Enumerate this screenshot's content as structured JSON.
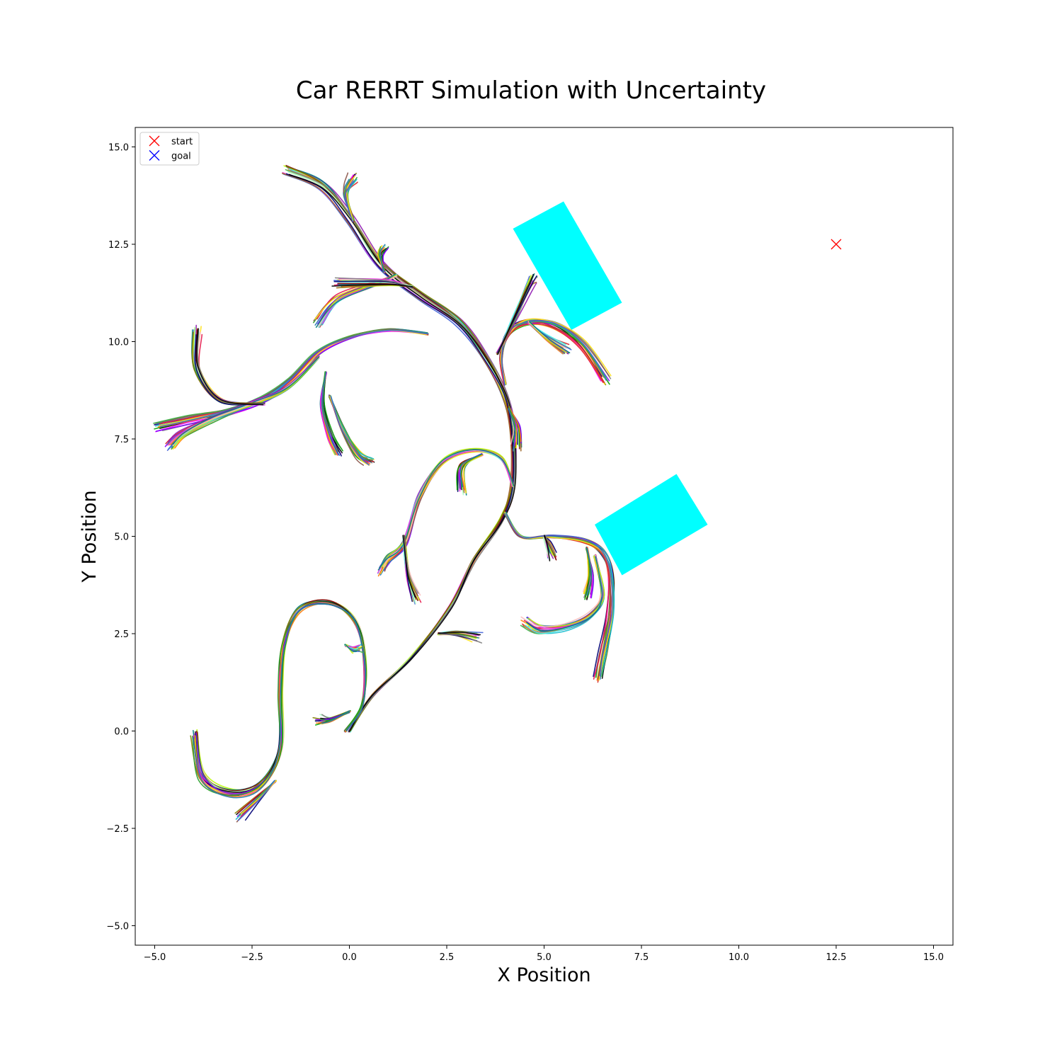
{
  "chart_data": {
    "type": "line",
    "title": "Car RERRT Simulation with Uncertainty",
    "xlabel": "X Position",
    "ylabel": "Y Position",
    "xlim": [
      -5.5,
      15.5
    ],
    "ylim": [
      -5.5,
      15.5
    ],
    "xticks": [
      -5.0,
      -2.5,
      0.0,
      2.5,
      5.0,
      7.5,
      10.0,
      12.5,
      15.0
    ],
    "yticks": [
      -5.0,
      -2.5,
      0.0,
      2.5,
      5.0,
      7.5,
      10.0,
      12.5,
      15.0
    ],
    "xtick_labels": [
      "−5.0",
      "−2.5",
      "0.0",
      "2.5",
      "5.0",
      "7.5",
      "10.0",
      "12.5",
      "15.0"
    ],
    "ytick_labels": [
      "−5.0",
      "−2.5",
      "0.0",
      "2.5",
      "5.0",
      "7.5",
      "10.0",
      "12.5",
      "15.0"
    ],
    "grid": false,
    "legend": {
      "placement": "upper-left",
      "entries": [
        {
          "label": "start",
          "marker": "x",
          "color": "#ff0000"
        },
        {
          "label": "goal",
          "marker": "x",
          "color": "#0000ff"
        }
      ]
    },
    "start": {
      "x": 12.5,
      "y": 12.5
    },
    "obstacles": [
      {
        "color": "#00ffff",
        "corners": [
          [
            4.2,
            12.9
          ],
          [
            5.5,
            13.6
          ],
          [
            7.0,
            11.0
          ],
          [
            5.7,
            10.3
          ]
        ]
      },
      {
        "color": "#00ffff",
        "corners": [
          [
            6.3,
            5.3
          ],
          [
            8.4,
            6.6
          ],
          [
            9.2,
            5.3
          ],
          [
            7.0,
            4.0
          ]
        ]
      }
    ],
    "path_bundles": [
      {
        "points": [
          [
            0.0,
            0.0
          ],
          [
            0.6,
            0.9
          ],
          [
            1.6,
            1.9
          ],
          [
            2.6,
            3.2
          ],
          [
            3.2,
            4.4
          ],
          [
            3.9,
            5.4
          ],
          [
            4.2,
            6.3
          ],
          [
            4.2,
            7.6
          ],
          [
            4.0,
            8.6
          ],
          [
            3.5,
            9.6
          ],
          [
            2.8,
            10.5
          ],
          [
            1.8,
            11.2
          ],
          [
            0.8,
            12.0
          ],
          [
            0.0,
            13.2
          ],
          [
            -0.7,
            14.0
          ],
          [
            -1.6,
            14.4
          ]
        ]
      },
      {
        "points": [
          [
            -0.1,
            0.0
          ],
          [
            0.3,
            0.6
          ],
          [
            0.4,
            1.4
          ],
          [
            0.3,
            2.4
          ],
          [
            0.0,
            3.0
          ],
          [
            -0.6,
            3.3
          ],
          [
            -1.3,
            3.1
          ],
          [
            -1.7,
            2.2
          ],
          [
            -1.8,
            1.0
          ],
          [
            -1.8,
            -0.5
          ],
          [
            -2.3,
            -1.4
          ],
          [
            -3.1,
            -1.6
          ],
          [
            -3.8,
            -1.2
          ],
          [
            -4.0,
            -0.1
          ]
        ]
      },
      {
        "points": [
          [
            -1.9,
            -1.3
          ],
          [
            -2.3,
            -1.7
          ],
          [
            -2.8,
            -2.2
          ]
        ]
      },
      {
        "points": [
          [
            4.2,
            6.3
          ],
          [
            3.9,
            7.0
          ],
          [
            3.2,
            7.2
          ],
          [
            2.4,
            6.9
          ],
          [
            1.8,
            6.0
          ],
          [
            1.4,
            4.8
          ],
          [
            1.0,
            4.4
          ],
          [
            0.8,
            4.1
          ]
        ]
      },
      {
        "points": [
          [
            1.4,
            5.0
          ],
          [
            1.5,
            4.0
          ],
          [
            1.7,
            3.4
          ]
        ]
      },
      {
        "points": [
          [
            3.4,
            7.1
          ],
          [
            2.9,
            6.8
          ],
          [
            2.9,
            6.2
          ]
        ]
      },
      {
        "points": [
          [
            4.0,
            5.6
          ],
          [
            4.4,
            5.0
          ],
          [
            5.2,
            5.0
          ],
          [
            6.0,
            4.9
          ],
          [
            6.5,
            4.6
          ],
          [
            6.7,
            4.0
          ],
          [
            6.7,
            3.0
          ],
          [
            6.5,
            2.0
          ],
          [
            6.4,
            1.4
          ]
        ]
      },
      {
        "points": [
          [
            6.3,
            4.5
          ],
          [
            6.5,
            3.5
          ],
          [
            6.2,
            3.0
          ],
          [
            5.6,
            2.7
          ],
          [
            4.9,
            2.6
          ],
          [
            4.5,
            2.8
          ]
        ]
      },
      {
        "points": [
          [
            5.0,
            5.0
          ],
          [
            5.1,
            4.8
          ],
          [
            5.2,
            4.5
          ]
        ]
      },
      {
        "points": [
          [
            6.1,
            4.7
          ],
          [
            6.2,
            4.0
          ],
          [
            6.1,
            3.5
          ]
        ]
      },
      {
        "points": [
          [
            4.0,
            8.9
          ],
          [
            3.9,
            9.6
          ],
          [
            4.1,
            10.2
          ],
          [
            4.6,
            10.5
          ],
          [
            5.3,
            10.4
          ],
          [
            6.0,
            9.9
          ],
          [
            6.6,
            9.0
          ]
        ]
      },
      {
        "points": [
          [
            4.6,
            10.5
          ],
          [
            5.1,
            10.1
          ],
          [
            5.6,
            9.8
          ]
        ]
      },
      {
        "points": [
          [
            3.8,
            9.7
          ],
          [
            4.2,
            10.5
          ],
          [
            4.6,
            11.4
          ],
          [
            4.7,
            11.6
          ]
        ]
      },
      {
        "points": [
          [
            4.1,
            8.3
          ],
          [
            4.3,
            7.8
          ],
          [
            4.3,
            7.3
          ]
        ]
      },
      {
        "points": [
          [
            2.0,
            10.2
          ],
          [
            1.0,
            10.3
          ],
          [
            0.0,
            10.1
          ],
          [
            -0.8,
            9.7
          ],
          [
            -1.5,
            9.0
          ],
          [
            -2.2,
            8.5
          ],
          [
            -3.1,
            8.2
          ],
          [
            -4.0,
            8.0
          ],
          [
            -4.9,
            7.8
          ]
        ]
      },
      {
        "points": [
          [
            -0.8,
            9.6
          ],
          [
            -1.6,
            8.8
          ],
          [
            -2.5,
            8.4
          ],
          [
            -3.5,
            8.0
          ],
          [
            -4.3,
            7.6
          ],
          [
            -4.6,
            7.3
          ]
        ]
      },
      {
        "points": [
          [
            -2.2,
            8.4
          ],
          [
            -3.3,
            8.5
          ],
          [
            -3.9,
            9.3
          ],
          [
            -3.9,
            10.3
          ]
        ]
      },
      {
        "points": [
          [
            -0.6,
            9.2
          ],
          [
            -0.7,
            8.4
          ],
          [
            -0.5,
            7.6
          ],
          [
            -0.3,
            7.2
          ]
        ]
      },
      {
        "points": [
          [
            -0.5,
            8.6
          ],
          [
            -0.2,
            7.8
          ],
          [
            0.2,
            7.1
          ],
          [
            0.5,
            6.9
          ]
        ]
      },
      {
        "points": [
          [
            1.2,
            11.7
          ],
          [
            0.7,
            11.5
          ],
          [
            -0.3,
            11.1
          ],
          [
            -0.8,
            10.5
          ]
        ]
      },
      {
        "points": [
          [
            1.6,
            11.4
          ],
          [
            1.0,
            11.5
          ],
          [
            -0.3,
            11.5
          ]
        ]
      },
      {
        "points": [
          [
            0.9,
            11.8
          ],
          [
            0.8,
            12.2
          ],
          [
            0.9,
            12.4
          ]
        ]
      },
      {
        "points": [
          [
            0.1,
            13.1
          ],
          [
            -0.1,
            13.8
          ],
          [
            0.1,
            14.2
          ]
        ]
      },
      {
        "points": [
          [
            -0.1,
            2.2
          ],
          [
            0.1,
            2.1
          ],
          [
            0.2,
            2.1
          ]
        ]
      },
      {
        "points": [
          [
            2.3,
            2.5
          ],
          [
            2.8,
            2.5
          ],
          [
            3.3,
            2.4
          ]
        ]
      },
      {
        "points": [
          [
            0.0,
            0.5
          ],
          [
            -0.5,
            0.3
          ],
          [
            -0.8,
            0.3
          ]
        ]
      }
    ],
    "series_colors": [
      "#e6194b",
      "#3cb44b",
      "#ffe119",
      "#4363d8",
      "#f58231",
      "#911eb4",
      "#46f0f0",
      "#f032e6",
      "#bcf60c",
      "#fabebe",
      "#008080",
      "#9a6324",
      "#800000",
      "#aaffc3",
      "#808000",
      "#000075",
      "#808080",
      "#000000",
      "#ff00ff",
      "#00a000",
      "#ffd700",
      "#7f00ff",
      "#ff7f0e",
      "#2ca02c",
      "#1f77b4",
      "#d62728",
      "#17becf",
      "#8c564b"
    ]
  }
}
